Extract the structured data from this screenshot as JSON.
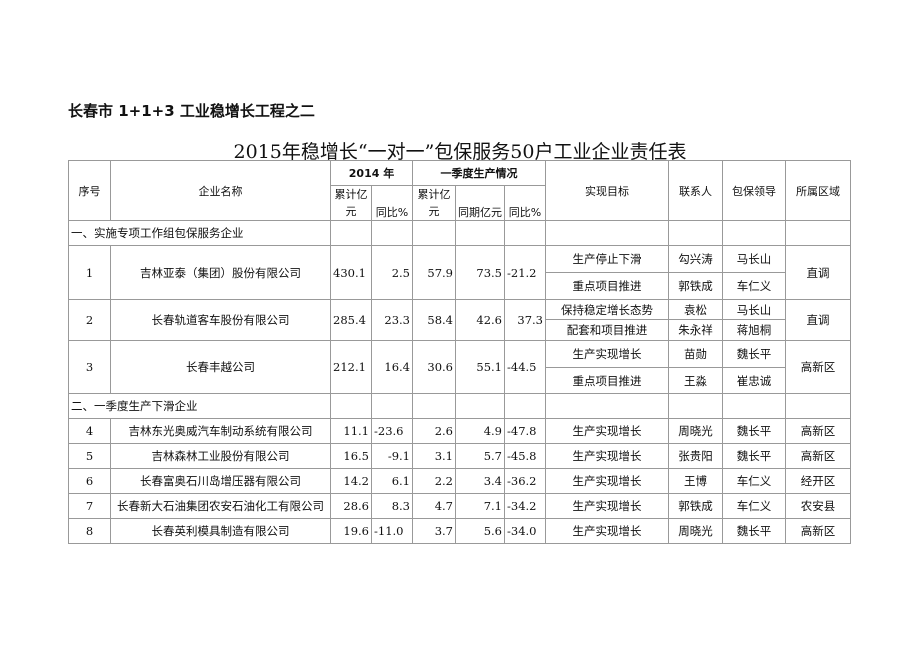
{
  "subtitle": "长春市 1+1+3 工业稳增长工程之二",
  "title": "2015年稳增长“一对一”包保服务50户工业企业责任表",
  "headers": {
    "seq": "序号",
    "name": "企业名称",
    "y2014": "2014 年",
    "q1": "一季度生产情况",
    "cum2014": "累计亿元",
    "yoy2014": "同比%",
    "cumq1": "累计亿元",
    "prev": "同期亿元",
    "yoyq1": "同比%",
    "target": "实现目标",
    "contact": "联系人",
    "leader": "包保领导",
    "district": "所属区域"
  },
  "sections": [
    "一、实施专项工作组包保服务企业",
    "二、一季度生产下滑企业"
  ],
  "group1": [
    {
      "seq": "1",
      "name": "吉林亚泰（集团）股份有限公司",
      "c14": "430.1",
      "y14": "2.5",
      "cq": "57.9",
      "pv": "73.5",
      "yq": "-21.2",
      "district": "直调",
      "subs": [
        {
          "target": "生产停止下滑",
          "contact": "勾兴涛",
          "leader": "马长山"
        },
        {
          "target": "重点项目推进",
          "contact": "郭铁成",
          "leader": "车仁义"
        }
      ]
    },
    {
      "seq": "2",
      "name": "长春轨道客车股份有限公司",
      "c14": "285.4",
      "y14": "23.3",
      "cq": "58.4",
      "pv": "42.6",
      "yq": "37.3",
      "district": "直调",
      "subs": [
        {
          "target": "保持稳定增长态势",
          "contact": "袁松",
          "leader": "马长山"
        },
        {
          "target": "配套和项目推进",
          "contact": "朱永祥",
          "leader": "蒋旭桐"
        }
      ]
    },
    {
      "seq": "3",
      "name": "长春丰越公司",
      "c14": "212.1",
      "y14": "16.4",
      "cq": "30.6",
      "pv": "55.1",
      "yq": "-44.5",
      "district": "高新区",
      "subs": [
        {
          "target": "生产实现增长",
          "contact": "苗勋",
          "leader": "魏长平"
        },
        {
          "target": "重点项目推进",
          "contact": "王淼",
          "leader": "崔忠诚"
        }
      ]
    }
  ],
  "group2": [
    {
      "seq": "4",
      "name": "吉林东光奥威汽车制动系统有限公司",
      "c14": "11.1",
      "y14": "-23.6",
      "cq": "2.6",
      "pv": "4.9",
      "yq": "-47.8",
      "target": "生产实现增长",
      "contact": "周晓光",
      "leader": "魏长平",
      "district": "高新区"
    },
    {
      "seq": "5",
      "name": "吉林森林工业股份有限公司",
      "c14": "16.5",
      "y14": "-9.1",
      "cq": "3.1",
      "pv": "5.7",
      "yq": "-45.8",
      "target": "生产实现增长",
      "contact": "张贵阳",
      "leader": "魏长平",
      "district": "高新区"
    },
    {
      "seq": "6",
      "name": "长春富奥石川岛增压器有限公司",
      "c14": "14.2",
      "y14": "6.1",
      "cq": "2.2",
      "pv": "3.4",
      "yq": "-36.2",
      "target": "生产实现增长",
      "contact": "王博",
      "leader": "车仁义",
      "district": "经开区"
    },
    {
      "seq": "7",
      "name": "长春新大石油集团农安石油化工有限公司",
      "c14": "28.6",
      "y14": "8.3",
      "cq": "4.7",
      "pv": "7.1",
      "yq": "-34.2",
      "target": "生产实现增长",
      "contact": "郭铁成",
      "leader": "车仁义",
      "district": "农安县"
    },
    {
      "seq": "8",
      "name": "长春英利模具制造有限公司",
      "c14": "19.6",
      "y14": "-11.0",
      "cq": "3.7",
      "pv": "5.6",
      "yq": "-34.0",
      "target": "生产实现增长",
      "contact": "周晓光",
      "leader": "魏长平",
      "district": "高新区"
    }
  ]
}
